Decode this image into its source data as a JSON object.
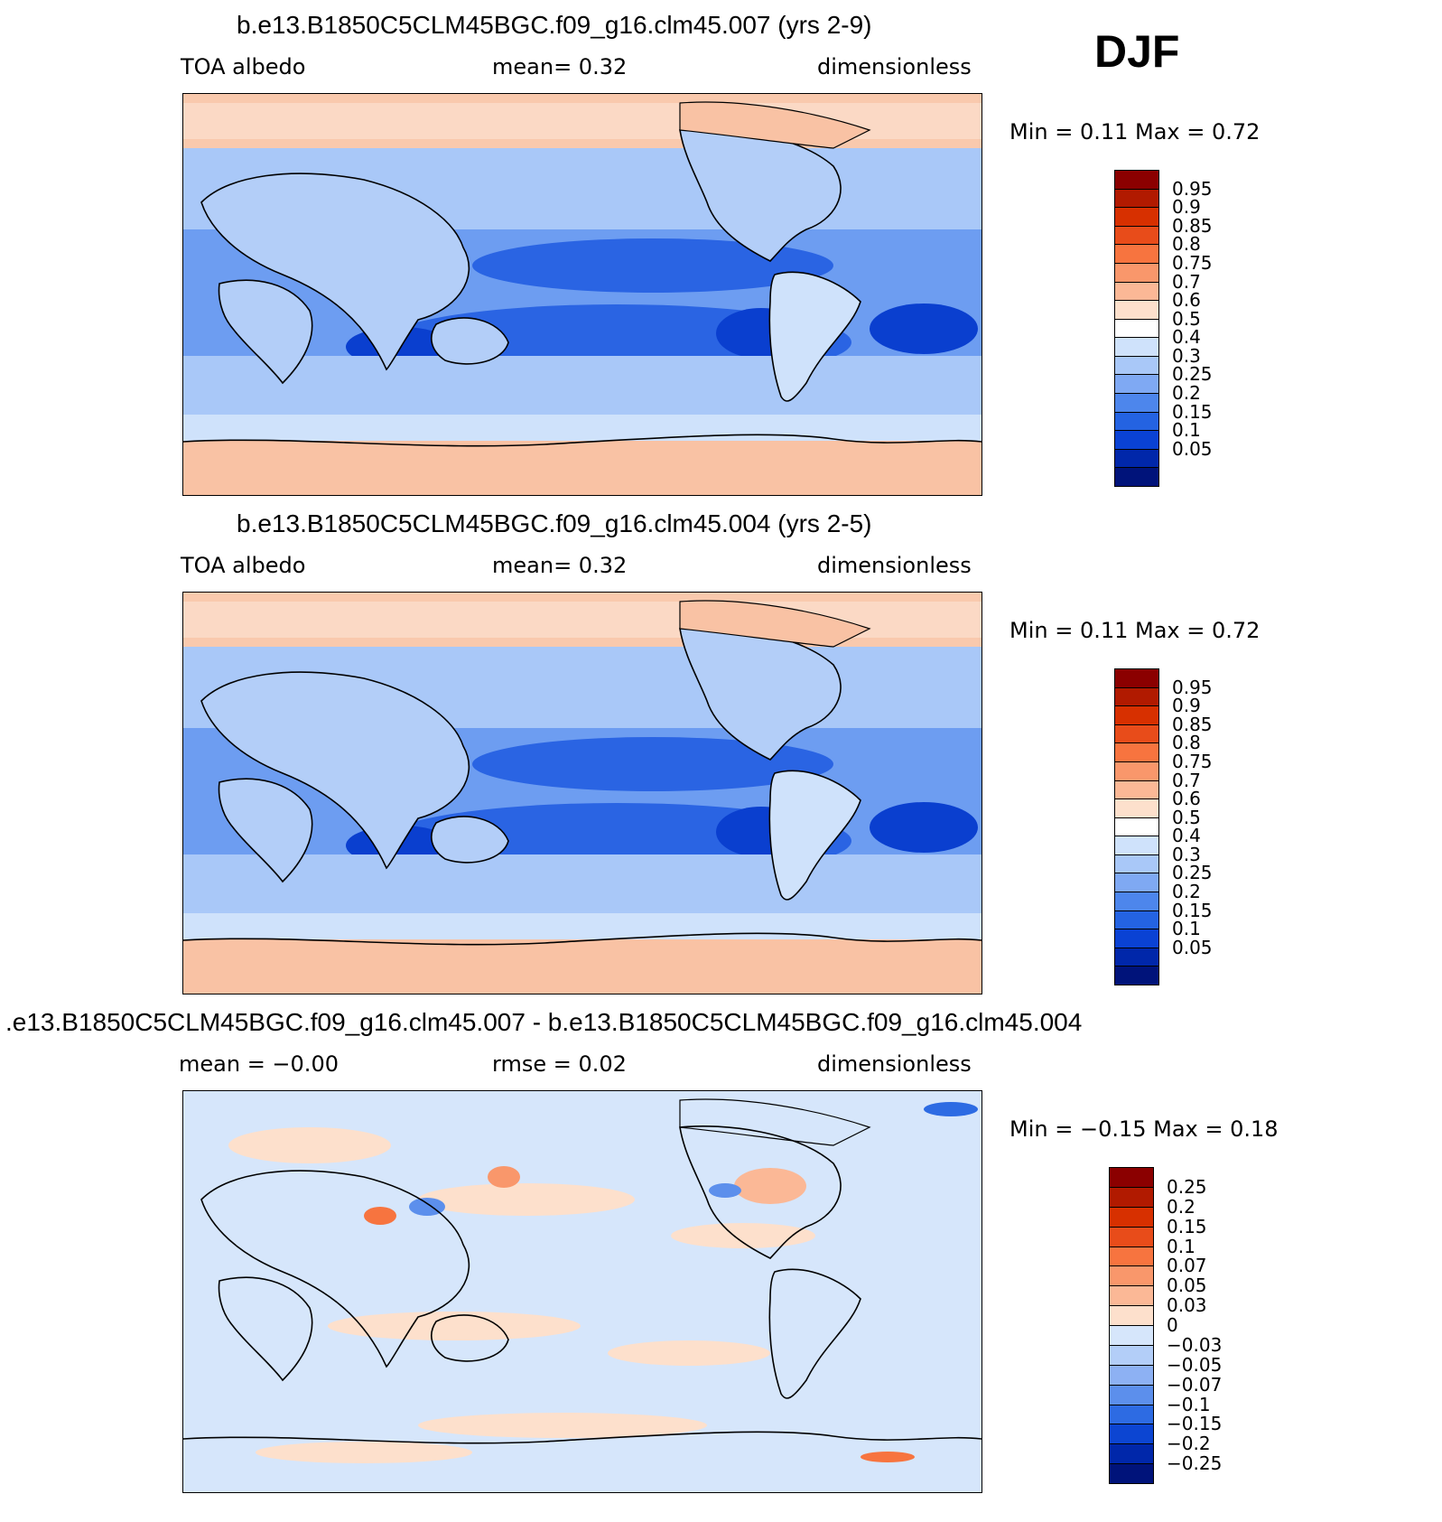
{
  "season": "DJF",
  "panels": [
    {
      "id": "top",
      "title": "b.e13.B1850C5CLM45BGC.f09_g16.clm45.007 (yrs 2-9)",
      "left_label": "TOA  albedo",
      "mid_label": "mean=     0.32",
      "right_label": "dimensionless",
      "minmax": "Min  =     0.11  Max  =     0.72"
    },
    {
      "id": "middle",
      "title": "b.e13.B1850C5CLM45BGC.f09_g16.clm45.004 (yrs 2-5)",
      "left_label": "TOA  albedo",
      "mid_label": "mean=     0.32",
      "right_label": "dimensionless",
      "minmax": "Min  =     0.11  Max  =     0.72"
    },
    {
      "id": "diff",
      "title": ".e13.B1850C5CLM45BGC.f09_g16.clm45.007 - b.e13.B1850C5CLM45BGC.f09_g16.clm45.004",
      "left_label": "mean  =   −0.00",
      "mid_label": "rmse  =     0.02",
      "right_label": "dimensionless",
      "minmax": "Min  =   −0.15  Max  =     0.18"
    }
  ],
  "colorbar_abs": {
    "labels": [
      "0.95",
      "0.9",
      "0.85",
      "0.8",
      "0.75",
      "0.7",
      "0.6",
      "0.5",
      "0.4",
      "0.3",
      "0.25",
      "0.2",
      "0.15",
      "0.1",
      "0.05"
    ],
    "colors": [
      "#8b0000",
      "#b11a00",
      "#d73000",
      "#e84c1a",
      "#f7743f",
      "#f9976b",
      "#fbb896",
      "#fde0cc",
      "#ffffff",
      "#cfe2fb",
      "#a9c8f8",
      "#7fa9f3",
      "#4d86ec",
      "#2463e2",
      "#0a42d4",
      "#0027aa",
      "#00137a"
    ]
  },
  "colorbar_diff": {
    "labels": [
      "0.25",
      "0.2",
      "0.15",
      "0.1",
      "0.07",
      "0.05",
      "0.03",
      "0",
      "−0.03",
      "−0.05",
      "−0.07",
      "−0.1",
      "−0.15",
      "−0.2",
      "−0.25"
    ],
    "colors": [
      "#8b0000",
      "#b11a00",
      "#d73000",
      "#e84c1a",
      "#f7743f",
      "#f9976b",
      "#fbb896",
      "#fde0cc",
      "#d6e6fb",
      "#b3cef8",
      "#8db1f3",
      "#5c8fec",
      "#2d6be3",
      "#0c45d2",
      "#0027aa",
      "#00137a"
    ]
  }
}
